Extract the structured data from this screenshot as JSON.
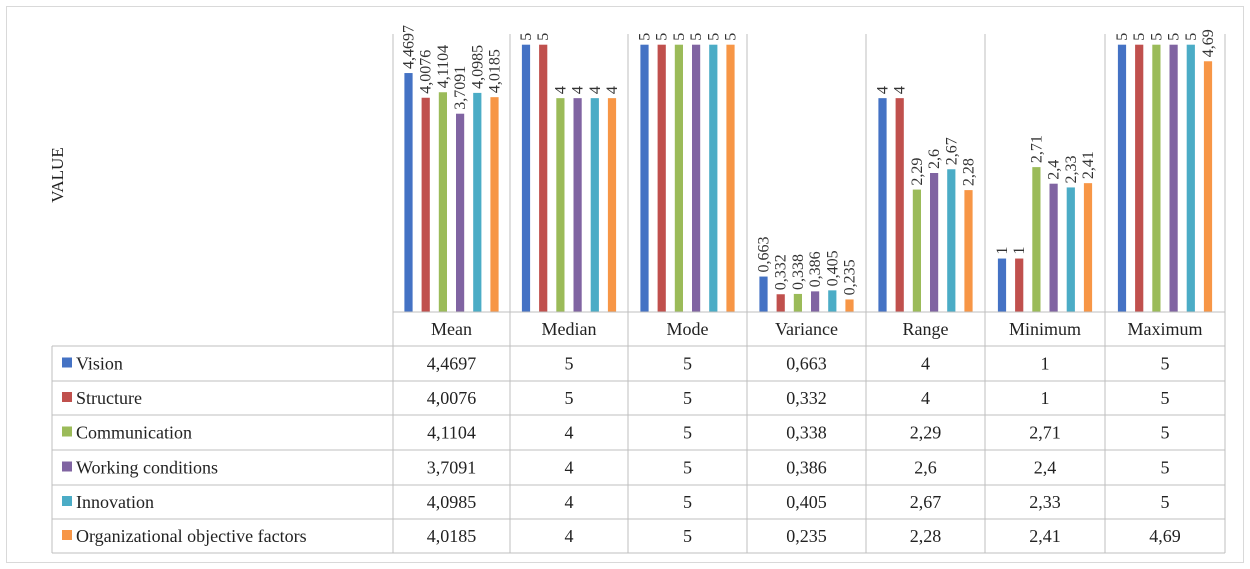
{
  "chart_data": {
    "type": "bar",
    "ylabel": "VALUE",
    "categories": [
      "Mean",
      "Median",
      "Mode",
      "Variance",
      "Range",
      "Minimum",
      "Maximum"
    ],
    "ylim": [
      0,
      5.2
    ],
    "series": [
      {
        "name": "Vision",
        "color": "#4472c4",
        "values": [
          4.4697,
          5,
          5,
          0.663,
          4,
          1,
          5
        ],
        "labels": [
          "4,4697",
          "5",
          "5",
          "0,663",
          "4",
          "1",
          "5"
        ]
      },
      {
        "name": "Structure",
        "color": "#c0504d",
        "values": [
          4.0076,
          5,
          5,
          0.332,
          4,
          1,
          5
        ],
        "labels": [
          "4,0076",
          "5",
          "5",
          "0,332",
          "4",
          "1",
          "5"
        ]
      },
      {
        "name": "Communication",
        "color": "#9bbb59",
        "values": [
          4.1104,
          4,
          5,
          0.338,
          2.29,
          2.71,
          5
        ],
        "labels": [
          "4,1104",
          "4",
          "5",
          "0,338",
          "2,29",
          "2,71",
          "5"
        ]
      },
      {
        "name": "Working conditions",
        "color": "#8064a2",
        "values": [
          3.7091,
          4,
          5,
          0.386,
          2.6,
          2.4,
          5
        ],
        "labels": [
          "3,7091",
          "4",
          "5",
          "0,386",
          "2,6",
          "2,4",
          "5"
        ]
      },
      {
        "name": "Innovation",
        "color": "#4bacc6",
        "values": [
          4.0985,
          4,
          5,
          0.405,
          2.67,
          2.33,
          5
        ],
        "labels": [
          "4,0985",
          "4",
          "5",
          "0,405",
          "2,67",
          "2,33",
          "5"
        ]
      },
      {
        "name": "Organizational objective factors",
        "color": "#f79646",
        "values": [
          4.0185,
          4,
          5,
          0.235,
          2.28,
          2.41,
          4.69
        ],
        "labels": [
          "4,0185",
          "4",
          "5",
          "0,235",
          "2,28",
          "2,41",
          "4,69"
        ]
      }
    ]
  }
}
